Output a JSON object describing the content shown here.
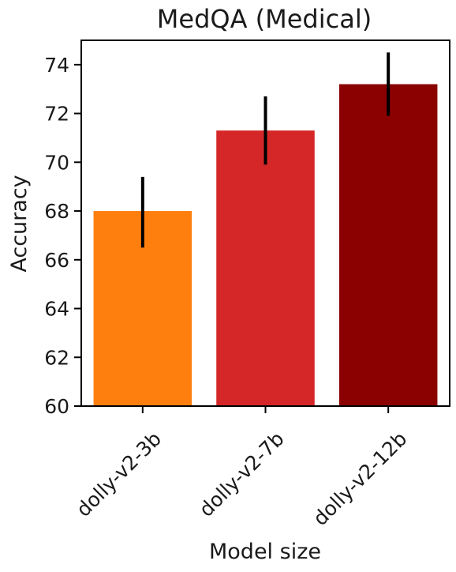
{
  "chart_data": {
    "type": "bar",
    "title": "MedQA (Medical)",
    "xlabel": "Model size",
    "ylabel": "Accuracy",
    "categories": [
      "dolly-v2-3b",
      "dolly-v2-7b",
      "dolly-v2-12b"
    ],
    "values": [
      68.0,
      71.3,
      73.2
    ],
    "error_low": [
      66.5,
      69.9,
      71.9
    ],
    "error_high": [
      69.4,
      72.7,
      74.5
    ],
    "colors": [
      "#ff7f0e",
      "#d62728",
      "#8b0000"
    ],
    "ylim": [
      60,
      75
    ],
    "yticks": [
      60,
      62,
      64,
      66,
      68,
      70,
      72,
      74
    ],
    "grid": false,
    "legend": "none"
  }
}
